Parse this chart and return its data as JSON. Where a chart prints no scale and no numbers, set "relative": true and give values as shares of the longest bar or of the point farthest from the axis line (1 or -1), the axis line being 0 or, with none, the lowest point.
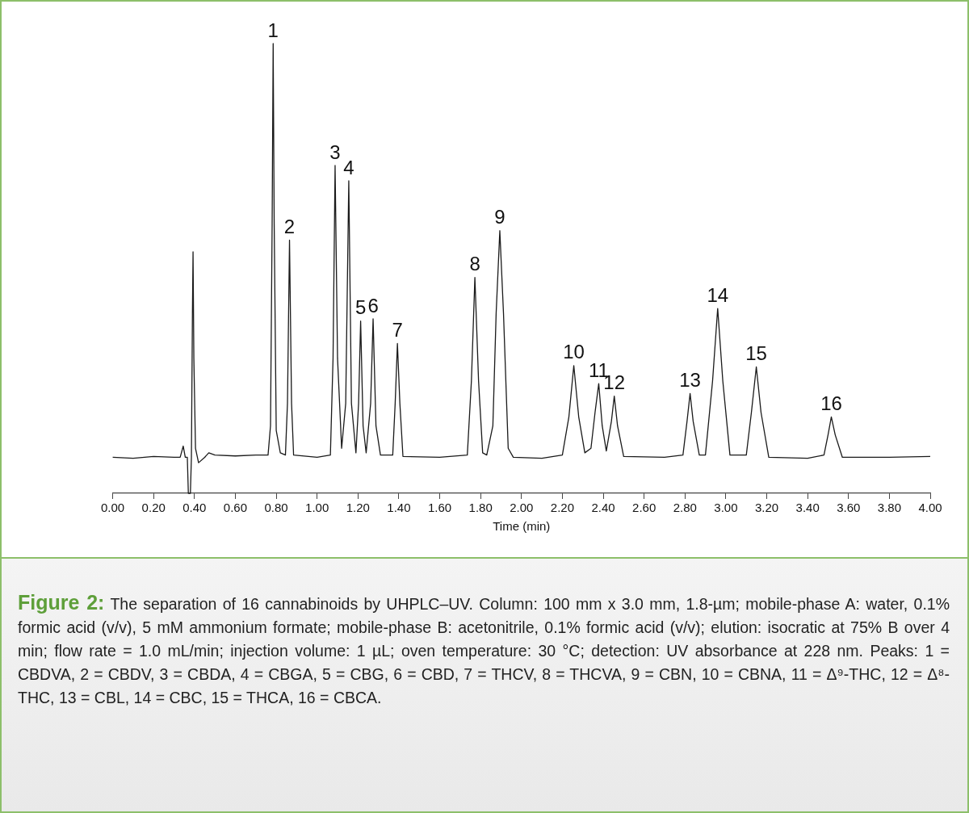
{
  "chart_data": {
    "type": "line",
    "relative": true,
    "title": "Figure 2:",
    "subtitle": "The separation of 16 cannabinoids by UHPLC–UV. Column: 100 mm x 3.0 mm, 1.8-µm; mobile-phase A: water, 0.1% formic acid (v/v), 5 mM ammonium formate; mobile-phase B: acetonitrile, 0.1% formic acid (v/v); elution: isocratic at 75% B over 4 min; flow rate = 1.0 mL/min; injection volume: 1 µL; oven temperature: 30 °C; detection: UV absorbance at 228 nm. Peaks: 1 = CBDVA, 2 = CBDV, 3 = CBDA, 4 = CBGA, 5 = CBG, 6 = CBD, 7 = THCV, 8 = THCVA, 9 = CBN, 10 = CBNA, 11 = Δ⁹-THC, 12 = Δ⁸-THC, 13 = CBL, 14 = CBC, 15 = THCA, 16 = CBCA.",
    "xlabel": "Time (min)",
    "xlim": [
      0,
      4
    ],
    "xticks": [
      {
        "value": 0,
        "label": "0.00"
      },
      {
        "value": 0.2,
        "label": "0.20"
      },
      {
        "value": 0.4,
        "label": "0.40"
      },
      {
        "value": 0.6,
        "label": "0.60"
      },
      {
        "value": 0.8,
        "label": "0.80"
      },
      {
        "value": 1,
        "label": "1.00"
      },
      {
        "value": 1.2,
        "label": "1.20"
      },
      {
        "value": 1.4,
        "label": "1.40"
      },
      {
        "value": 1.6,
        "label": "1.60"
      },
      {
        "value": 1.8,
        "label": "1.80"
      },
      {
        "value": 2,
        "label": "2.00"
      },
      {
        "value": 2.2,
        "label": "2.20"
      },
      {
        "value": 2.4,
        "label": "2.40"
      },
      {
        "value": 2.6,
        "label": "2.60"
      },
      {
        "value": 2.8,
        "label": "2.80"
      },
      {
        "value": 3,
        "label": "3.00"
      },
      {
        "value": 3.2,
        "label": "3.20"
      },
      {
        "value": 3.4,
        "label": "3.40"
      },
      {
        "value": 3.6,
        "label": "3.60"
      },
      {
        "value": 3.8,
        "label": "3.80"
      },
      {
        "value": 4,
        "label": "4.00"
      }
    ],
    "grid": false,
    "legend": false,
    "series": [
      {
        "color": "#1a1a1a",
        "x": [
          0,
          0.1,
          0.2,
          0.3,
          0.33,
          0.345,
          0.355,
          0.365,
          0.37,
          0.38,
          0.385,
          0.39,
          0.393,
          0.397,
          0.405,
          0.42,
          0.45,
          0.47,
          0.5,
          0.6,
          0.7,
          0.76,
          0.772,
          0.78,
          0.785,
          0.79,
          0.8,
          0.82,
          0.845,
          0.855,
          0.865,
          0.875,
          0.885,
          1,
          1.065,
          1.078,
          1.088,
          1.1,
          1.12,
          1.14,
          1.155,
          1.168,
          1.19,
          1.203,
          1.213,
          1.225,
          1.24,
          1.262,
          1.274,
          1.288,
          1.31,
          1.37,
          1.382,
          1.393,
          1.405,
          1.42,
          1.6,
          1.735,
          1.755,
          1.772,
          1.79,
          1.81,
          1.83,
          1.86,
          1.876,
          1.894,
          1.912,
          1.935,
          1.96,
          2.1,
          2.2,
          2.232,
          2.256,
          2.28,
          2.31,
          2.34,
          2.36,
          2.378,
          2.395,
          2.415,
          2.44,
          2.454,
          2.47,
          2.5,
          2.7,
          2.79,
          2.81,
          2.825,
          2.84,
          2.87,
          2.9,
          2.935,
          2.96,
          2.985,
          3.02,
          3.1,
          3.125,
          3.149,
          3.172,
          3.21,
          3.4,
          3.48,
          3.5,
          3.516,
          3.535,
          3.57,
          3.8,
          4
        ],
        "values": [
          0.08,
          0.078,
          0.082,
          0.08,
          0.08,
          0.105,
          0.08,
          0.08,
          0,
          0,
          0.08,
          0.4,
          0.537,
          0.3,
          0.1,
          0.068,
          0.08,
          0.09,
          0.085,
          0.083,
          0.085,
          0.085,
          0.15,
          0.6,
          1,
          0.6,
          0.14,
          0.09,
          0.085,
          0.2,
          0.563,
          0.2,
          0.085,
          0.08,
          0.085,
          0.3,
          0.729,
          0.3,
          0.1,
          0.2,
          0.695,
          0.2,
          0.09,
          0.2,
          0.383,
          0.15,
          0.09,
          0.2,
          0.388,
          0.15,
          0.085,
          0.085,
          0.2,
          0.333,
          0.2,
          0.082,
          0.08,
          0.085,
          0.25,
          0.48,
          0.25,
          0.09,
          0.085,
          0.15,
          0.4,
          0.584,
          0.4,
          0.1,
          0.08,
          0.078,
          0.085,
          0.17,
          0.284,
          0.17,
          0.09,
          0.1,
          0.18,
          0.244,
          0.15,
          0.094,
          0.16,
          0.216,
          0.15,
          0.082,
          0.08,
          0.085,
          0.16,
          0.222,
          0.16,
          0.085,
          0.085,
          0.25,
          0.411,
          0.25,
          0.085,
          0.085,
          0.18,
          0.281,
          0.18,
          0.08,
          0.078,
          0.085,
          0.13,
          0.17,
          0.13,
          0.08,
          0.08,
          0.082
        ]
      }
    ],
    "annotations": [
      {
        "text": "1",
        "x": 0.785,
        "y": 1
      },
      {
        "text": "2",
        "x": 0.865,
        "y": 0.563
      },
      {
        "text": "3",
        "x": 1.088,
        "y": 0.729
      },
      {
        "text": "4",
        "x": 1.155,
        "y": 0.695
      },
      {
        "text": "5",
        "x": 1.213,
        "y": 0.383
      },
      {
        "text": "6",
        "x": 1.274,
        "y": 0.388
      },
      {
        "text": "7",
        "x": 1.393,
        "y": 0.333
      },
      {
        "text": "8",
        "x": 1.772,
        "y": 0.48
      },
      {
        "text": "9",
        "x": 1.894,
        "y": 0.584
      },
      {
        "text": "10",
        "x": 2.256,
        "y": 0.284
      },
      {
        "text": "11",
        "x": 2.378,
        "y": 0.244
      },
      {
        "text": "12",
        "x": 2.454,
        "y": 0.216
      },
      {
        "text": "13",
        "x": 2.825,
        "y": 0.222
      },
      {
        "text": "14",
        "x": 2.96,
        "y": 0.411
      },
      {
        "text": "15",
        "x": 3.149,
        "y": 0.281
      },
      {
        "text": "16",
        "x": 3.516,
        "y": 0.17
      }
    ]
  }
}
